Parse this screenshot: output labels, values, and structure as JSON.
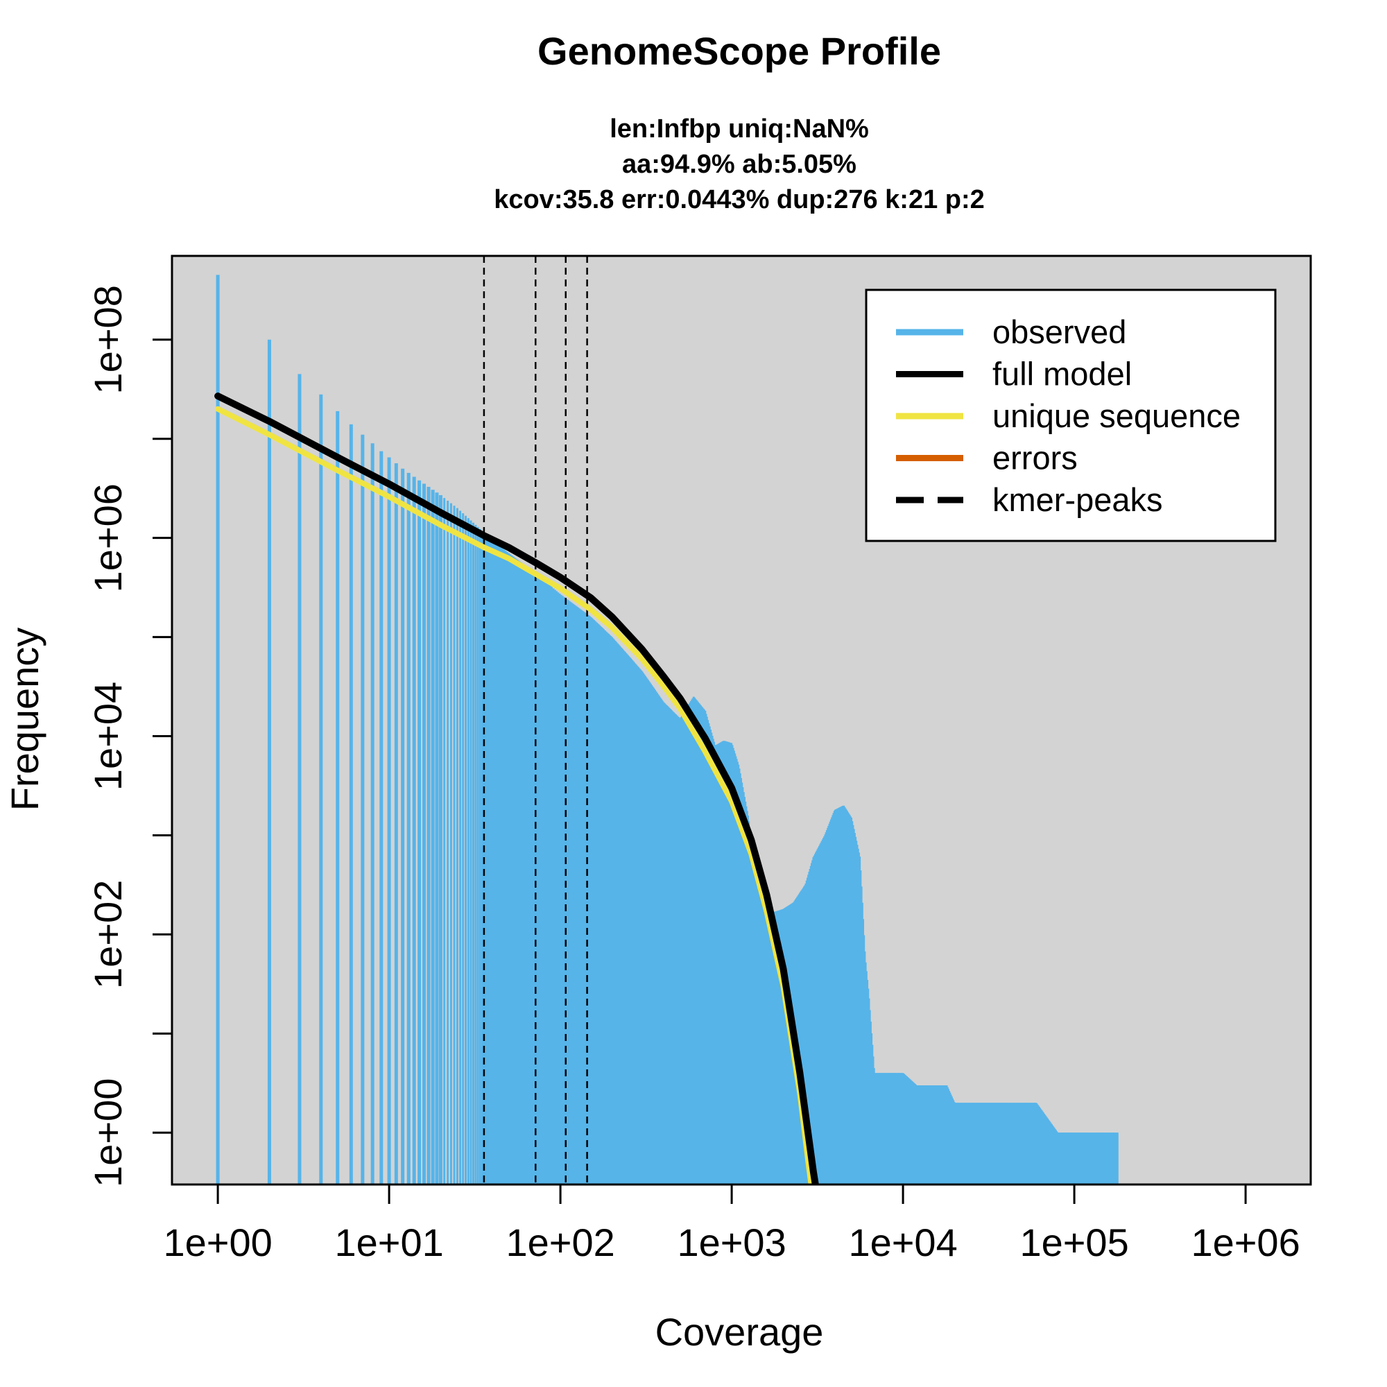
{
  "chart_data": {
    "type": "line",
    "title": "GenomeScope Profile",
    "subtitle_lines": [
      "len:Infbp uniq:NaN%",
      "aa:94.9% ab:5.05%",
      "kcov:35.8 err:0.0443%  dup:276  k:21 p:2"
    ],
    "xlabel": "Coverage",
    "ylabel": "Frequency",
    "x_scale": "log",
    "y_scale": "log",
    "xlim": [
      0.54,
      2400000
    ],
    "ylim": [
      0.3,
      700000000
    ],
    "x_ticks": [
      1,
      10,
      100,
      1000,
      10000,
      100000,
      1000000
    ],
    "x_tick_labels": [
      "1e+00",
      "1e+01",
      "1e+02",
      "1e+03",
      "1e+04",
      "1e+05",
      "1e+06"
    ],
    "y_ticks": [
      1,
      10,
      100,
      1000,
      10000,
      100000,
      1000000,
      10000000,
      100000000
    ],
    "y_tick_labels": [
      "1e+00",
      "",
      "1e+02",
      "",
      "1e+04",
      "",
      "1e+06",
      "",
      "1e+08"
    ],
    "background": "#d3d3d3",
    "grid": false,
    "legend_position": "top-right",
    "legend": [
      {
        "label": "observed",
        "color": "#56b4e9",
        "style": "solid"
      },
      {
        "label": "full model",
        "color": "#000000",
        "style": "solid"
      },
      {
        "label": "unique sequence",
        "color": "#f0e442",
        "style": "solid"
      },
      {
        "label": "errors",
        "color": "#d55e00",
        "style": "solid"
      },
      {
        "label": "kmer-peaks",
        "color": "#000000",
        "style": "dashed"
      }
    ],
    "kmer_peaks": [
      35.8,
      71.6,
      107.4,
      143.2
    ],
    "series": [
      {
        "name": "observed",
        "color": "#56b4e9",
        "style": "bars",
        "points": [
          [
            1,
            450000000
          ],
          [
            2,
            100000000
          ],
          [
            3,
            45000000
          ],
          [
            4,
            28000000
          ],
          [
            5,
            19000000
          ],
          [
            6,
            14000000
          ],
          [
            7,
            11000000
          ],
          [
            8,
            9000000
          ],
          [
            9,
            7500000
          ],
          [
            10,
            6500000
          ],
          [
            12,
            5000000
          ],
          [
            15,
            3800000
          ],
          [
            20,
            2700000
          ],
          [
            25,
            2000000
          ],
          [
            30,
            1500000
          ],
          [
            40,
            950000
          ],
          [
            50,
            700000
          ],
          [
            70,
            450000
          ],
          [
            100,
            270000
          ],
          [
            150,
            160000
          ],
          [
            200,
            100000
          ],
          [
            300,
            45000
          ],
          [
            400,
            22000
          ],
          [
            500,
            15000
          ],
          [
            600,
            25000
          ],
          [
            700,
            18000
          ],
          [
            800,
            8000
          ],
          [
            900,
            9000
          ],
          [
            1000,
            8500
          ],
          [
            1100,
            5000
          ],
          [
            1250,
            1500
          ],
          [
            1400,
            300
          ],
          [
            1600,
            160
          ],
          [
            1800,
            170
          ],
          [
            2000,
            180
          ],
          [
            2300,
            210
          ],
          [
            2700,
            320
          ],
          [
            3000,
            600
          ],
          [
            3500,
            1000
          ],
          [
            4000,
            1800
          ],
          [
            4500,
            2000
          ],
          [
            5000,
            1500
          ],
          [
            5600,
            600
          ],
          [
            6000,
            60
          ],
          [
            6300,
            25
          ],
          [
            6800,
            4
          ],
          [
            8000,
            4
          ],
          [
            10000,
            4
          ],
          [
            12000,
            3
          ],
          [
            14000,
            3
          ],
          [
            16000,
            3
          ],
          [
            18000,
            3
          ],
          [
            20000,
            2
          ],
          [
            25000,
            2
          ],
          [
            30000,
            2
          ],
          [
            35000,
            2
          ],
          [
            40000,
            2
          ],
          [
            50000,
            2
          ],
          [
            60000,
            2
          ],
          [
            80000,
            1
          ],
          [
            100000,
            1
          ],
          [
            150000,
            1
          ],
          [
            180000,
            1
          ]
        ]
      },
      {
        "name": "full model",
        "color": "#000000",
        "style": "solid",
        "points": [
          [
            1,
            27000000
          ],
          [
            2,
            15000000
          ],
          [
            5,
            6500000
          ],
          [
            10,
            3500000
          ],
          [
            20,
            1800000
          ],
          [
            36,
            1050000
          ],
          [
            50,
            800000
          ],
          [
            72,
            560000
          ],
          [
            100,
            400000
          ],
          [
            150,
            250000
          ],
          [
            200,
            160000
          ],
          [
            300,
            75000
          ],
          [
            400,
            40000
          ],
          [
            500,
            24000
          ],
          [
            700,
            9500
          ],
          [
            1000,
            3000
          ],
          [
            1300,
            900
          ],
          [
            1600,
            250
          ],
          [
            2000,
            45
          ],
          [
            2500,
            4
          ],
          [
            3000,
            0.4
          ],
          [
            3200,
            0.2
          ]
        ]
      },
      {
        "name": "unique sequence",
        "color": "#f0e442",
        "style": "solid",
        "points": [
          [
            1,
            20000000
          ],
          [
            2,
            11000000
          ],
          [
            5,
            4800000
          ],
          [
            10,
            2600000
          ],
          [
            20,
            1350000
          ],
          [
            36,
            800000
          ],
          [
            50,
            620000
          ],
          [
            72,
            430000
          ],
          [
            100,
            310000
          ],
          [
            150,
            190000
          ],
          [
            200,
            125000
          ],
          [
            300,
            60000
          ],
          [
            400,
            32000
          ],
          [
            500,
            19000
          ],
          [
            700,
            7000
          ],
          [
            1000,
            2200
          ],
          [
            1300,
            650
          ],
          [
            1600,
            170
          ],
          [
            2000,
            30
          ],
          [
            2500,
            2.5
          ],
          [
            2800,
            0.5
          ],
          [
            3000,
            0.2
          ]
        ]
      },
      {
        "name": "errors",
        "color": "#d55e00",
        "style": "solid",
        "points": []
      }
    ]
  }
}
